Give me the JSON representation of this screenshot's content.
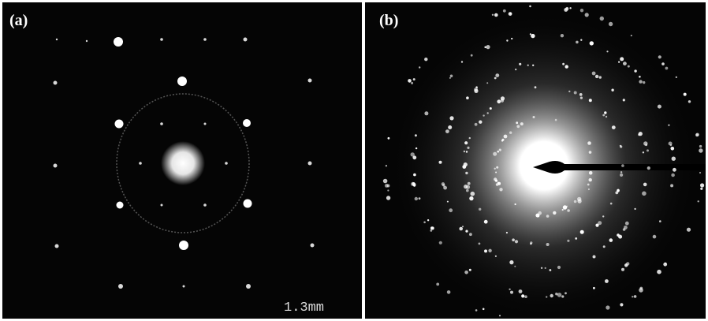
{
  "panels": [
    {
      "label": "(a)",
      "scale_label": "1.3mm"
    },
    {
      "label": "(b)"
    }
  ]
}
